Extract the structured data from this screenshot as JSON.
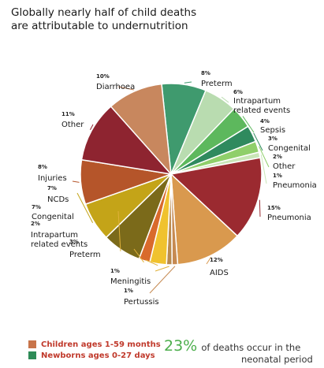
{
  "title": "Globally nearly half of child deaths are attributable to undernutrition",
  "colors": {
    "children_legend": "#c8744a",
    "newborns_legend": "#2e8b57",
    "leader_line": "#e0b13a",
    "stat_green": "#4cae4c"
  },
  "legend": [
    {
      "label": "Children ages 1-59 months",
      "color": "#c8744a"
    },
    {
      "label": "Newborns ages 0-27 days",
      "color": "#2e8b57"
    }
  ],
  "stat": {
    "value": "23%",
    "text_line1": "of deaths occur in the",
    "text_line2": "neonatal period"
  },
  "chart_data": {
    "type": "pie",
    "title": "Globally nearly half of child deaths are attributable to undernutrition",
    "slices": [
      {
        "label": "Preterm",
        "pct": "8%",
        "value": 8,
        "group": "newborns",
        "color": "#3f9a6e"
      },
      {
        "label": "Intrapartum related events",
        "pct": "6%",
        "value": 6,
        "group": "newborns",
        "color": "#b9dcb0"
      },
      {
        "label": "Sepsis",
        "pct": "4%",
        "value": 4,
        "group": "newborns",
        "color": "#5db85d"
      },
      {
        "label": "Congenital",
        "pct": "3%",
        "value": 3,
        "group": "newborns",
        "color": "#2f8a5e"
      },
      {
        "label": "Other",
        "pct": "2%",
        "value": 2,
        "group": "newborns",
        "color": "#8fcf6a"
      },
      {
        "label": "Pneumonia",
        "pct": "1%",
        "value": 1,
        "group": "newborns",
        "color": "#c9e6b7"
      },
      {
        "label": "Pneumonia",
        "pct": "15%",
        "value": 15,
        "group": "children",
        "color": "#9b2a30"
      },
      {
        "label": "AIDS",
        "pct": "12%",
        "value": 12,
        "group": "children",
        "color": "#d9994e"
      },
      {
        "label": "Pertussis",
        "pct": "1%",
        "value": 1,
        "group": "children",
        "color": "#c68a52"
      },
      {
        "label": "Meningitis",
        "pct": "1%",
        "value": 1,
        "group": "children",
        "color": "#b98a4e"
      },
      {
        "label": "Preterm",
        "pct": "3%",
        "value": 3,
        "group": "children",
        "color": "#f0c22e"
      },
      {
        "label": "Intrapartum related events",
        "pct": "2%",
        "value": 2,
        "group": "children",
        "color": "#d96a2c"
      },
      {
        "label": "Congenital",
        "pct": "7%",
        "value": 7,
        "group": "children",
        "color": "#7b6a1a"
      },
      {
        "label": "NCDs",
        "pct": "7%",
        "value": 7,
        "group": "children",
        "color": "#c4a418"
      },
      {
        "label": "Injuries",
        "pct": "8%",
        "value": 8,
        "group": "children",
        "color": "#b5552a"
      },
      {
        "label": "Other",
        "pct": "11%",
        "value": 11,
        "group": "children",
        "color": "#8e2430"
      },
      {
        "label": "Diarrhoea",
        "pct": "10%",
        "value": 10,
        "group": "children",
        "color": "#c8875e"
      }
    ]
  }
}
